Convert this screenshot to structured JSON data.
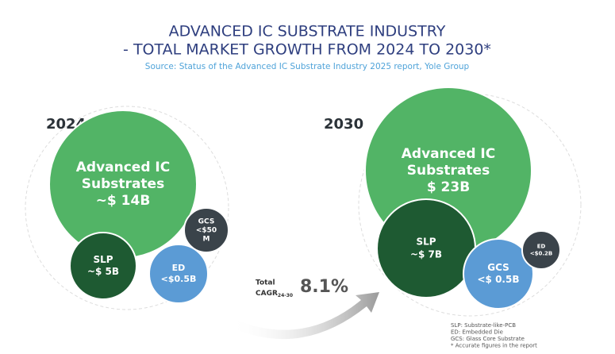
{
  "header": {
    "title": [
      "ADVANCED IC SUBSTRATE INDUSTRY",
      "- TOTAL MARKET GROWTH FROM 2024 TO 2030*"
    ],
    "source": "Source: Status of the Advanced IC Substrate Industry 2025 report, Yole Group"
  },
  "groups": [
    {
      "year": "2024",
      "bubbles": [
        {
          "lines": [
            "Advanced IC",
            "Substrates",
            "~$ 14B"
          ]
        },
        {
          "lines": [
            "SLP",
            "~$ 5B"
          ]
        },
        {
          "lines": [
            "ED",
            "<$0.5B"
          ]
        },
        {
          "lines": [
            "GCS",
            "<$50",
            "M"
          ]
        }
      ]
    },
    {
      "year": "2030",
      "bubbles": [
        {
          "lines": [
            "Advanced IC",
            "Substrates",
            "$ 23B"
          ]
        },
        {
          "lines": [
            "SLP",
            "~$ 7B"
          ]
        },
        {
          "lines": [
            "GCS",
            "<$ 0.5B"
          ]
        },
        {
          "lines": [
            "ED",
            "<$0.2B"
          ]
        }
      ]
    }
  ],
  "cagr": {
    "label": "Total",
    "label2": "CAGR",
    "sub": "24-30",
    "value": "8.1%"
  },
  "notes": [
    "SLP: Substrate-like-PCB",
    "ED: Embedded Die",
    "GCS: Glass Core Substrate",
    "* Accurate figures in the report"
  ]
}
